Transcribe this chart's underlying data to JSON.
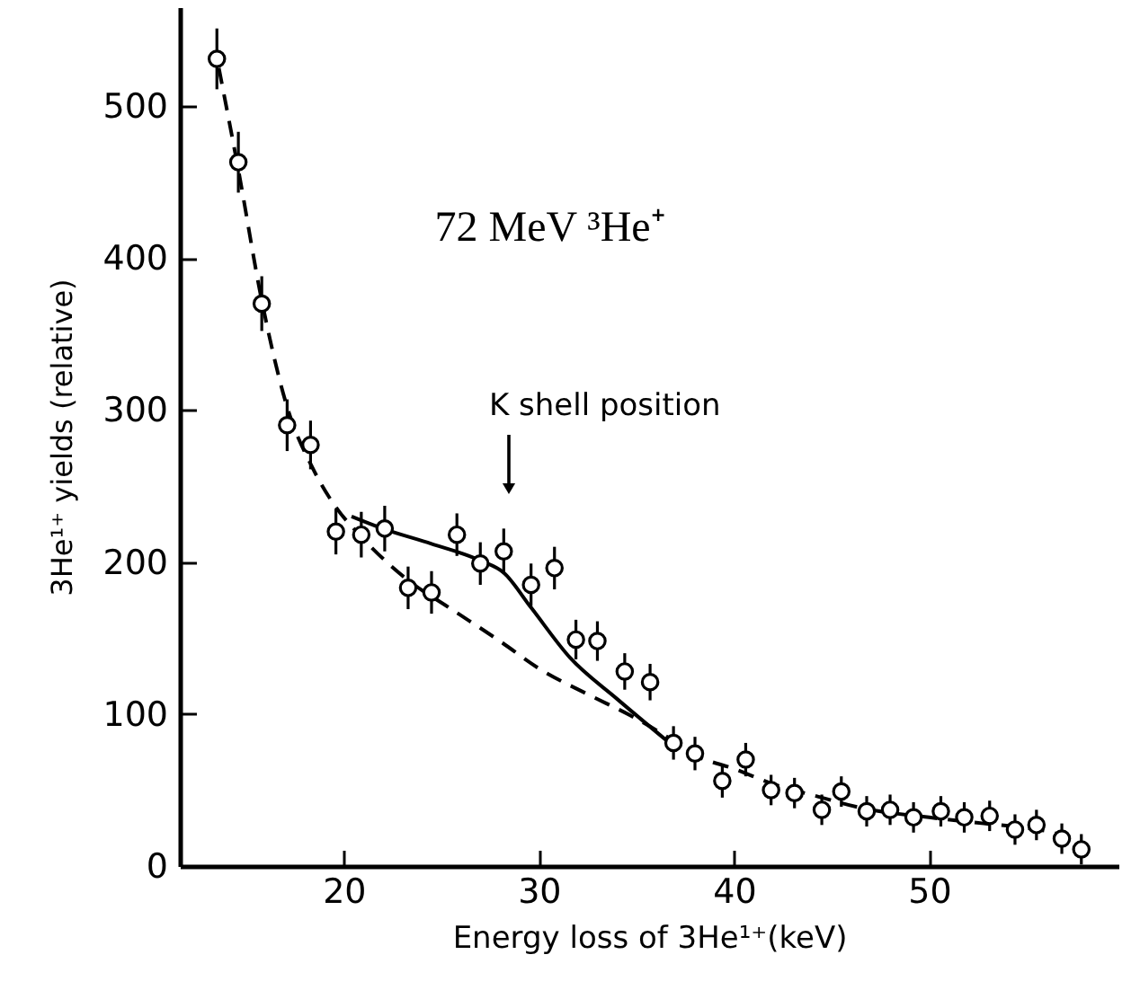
{
  "chart_data": {
    "type": "scatter",
    "title": "72 MeV ³He⁺",
    "xlabel": "Energy loss of 3He¹⁺(keV)",
    "ylabel": "3He¹⁺ yields (relative)",
    "xlim": [
      11.6,
      59.7
    ],
    "xticks": [
      20,
      30,
      40,
      50
    ],
    "ylim": [
      0,
      565
    ],
    "yticks": [
      0,
      100,
      200,
      300,
      400,
      500
    ],
    "grid": false,
    "marker": "circle",
    "annotations": [
      "K shell position"
    ],
    "series": [
      {
        "color": "#000000",
        "x": [
          13.5,
          14.6,
          15.8,
          17.1,
          18.3,
          19.6,
          20.9,
          22.1,
          23.3,
          24.5,
          25.8,
          27.0,
          28.2,
          29.6,
          30.8,
          31.9,
          33.0,
          34.4,
          35.7,
          36.9,
          38.0,
          39.4,
          40.6,
          41.9,
          43.1,
          44.5,
          45.5,
          46.8,
          48.0,
          49.2,
          50.6,
          51.8,
          53.1,
          54.4,
          55.5,
          56.8,
          57.8
        ],
        "values": [
          531,
          463,
          370,
          290,
          277,
          220,
          218,
          222,
          183,
          180,
          218,
          199,
          207,
          185,
          196,
          149,
          148,
          128,
          121,
          81,
          74,
          56,
          70,
          50,
          48,
          37,
          49,
          36,
          37,
          32,
          36,
          32,
          33,
          24,
          27,
          18,
          11
        ],
        "errors": [
          20,
          20,
          18,
          17,
          16,
          15,
          15,
          15,
          14,
          14,
          14,
          14,
          15,
          14,
          14,
          13,
          13,
          12,
          12,
          11,
          11,
          11,
          11,
          10,
          10,
          10,
          10,
          10,
          10,
          10,
          10,
          10,
          10,
          10,
          10,
          10,
          10
        ]
      },
      {
        "type": "line",
        "marker": "none",
        "line_style": "dashed",
        "color": "#000000",
        "x": [
          13.6,
          14.6,
          15.8,
          17.1,
          18.4,
          19.6,
          20.8,
          23.3,
          25.4,
          28,
          30,
          32.5,
          34.7,
          36.7,
          38,
          40,
          42,
          44.5,
          46.6,
          50,
          52.8,
          55,
          56.8,
          57.8
        ],
        "values": [
          525,
          458,
          372,
          302,
          262,
          236,
          218,
          188,
          170,
          148,
          130,
          113,
          99,
          84,
          73,
          64,
          54,
          45,
          38,
          32,
          28,
          25,
          20,
          13
        ]
      },
      {
        "type": "line",
        "marker": "none",
        "line_style": "solid",
        "color": "#000000",
        "x": [
          20.4,
          22,
          24.5,
          27,
          28.2,
          29.6,
          31.6,
          34,
          36.6
        ],
        "values": [
          230,
          222,
          212,
          201,
          193,
          170,
          137,
          110,
          82
        ]
      }
    ]
  }
}
